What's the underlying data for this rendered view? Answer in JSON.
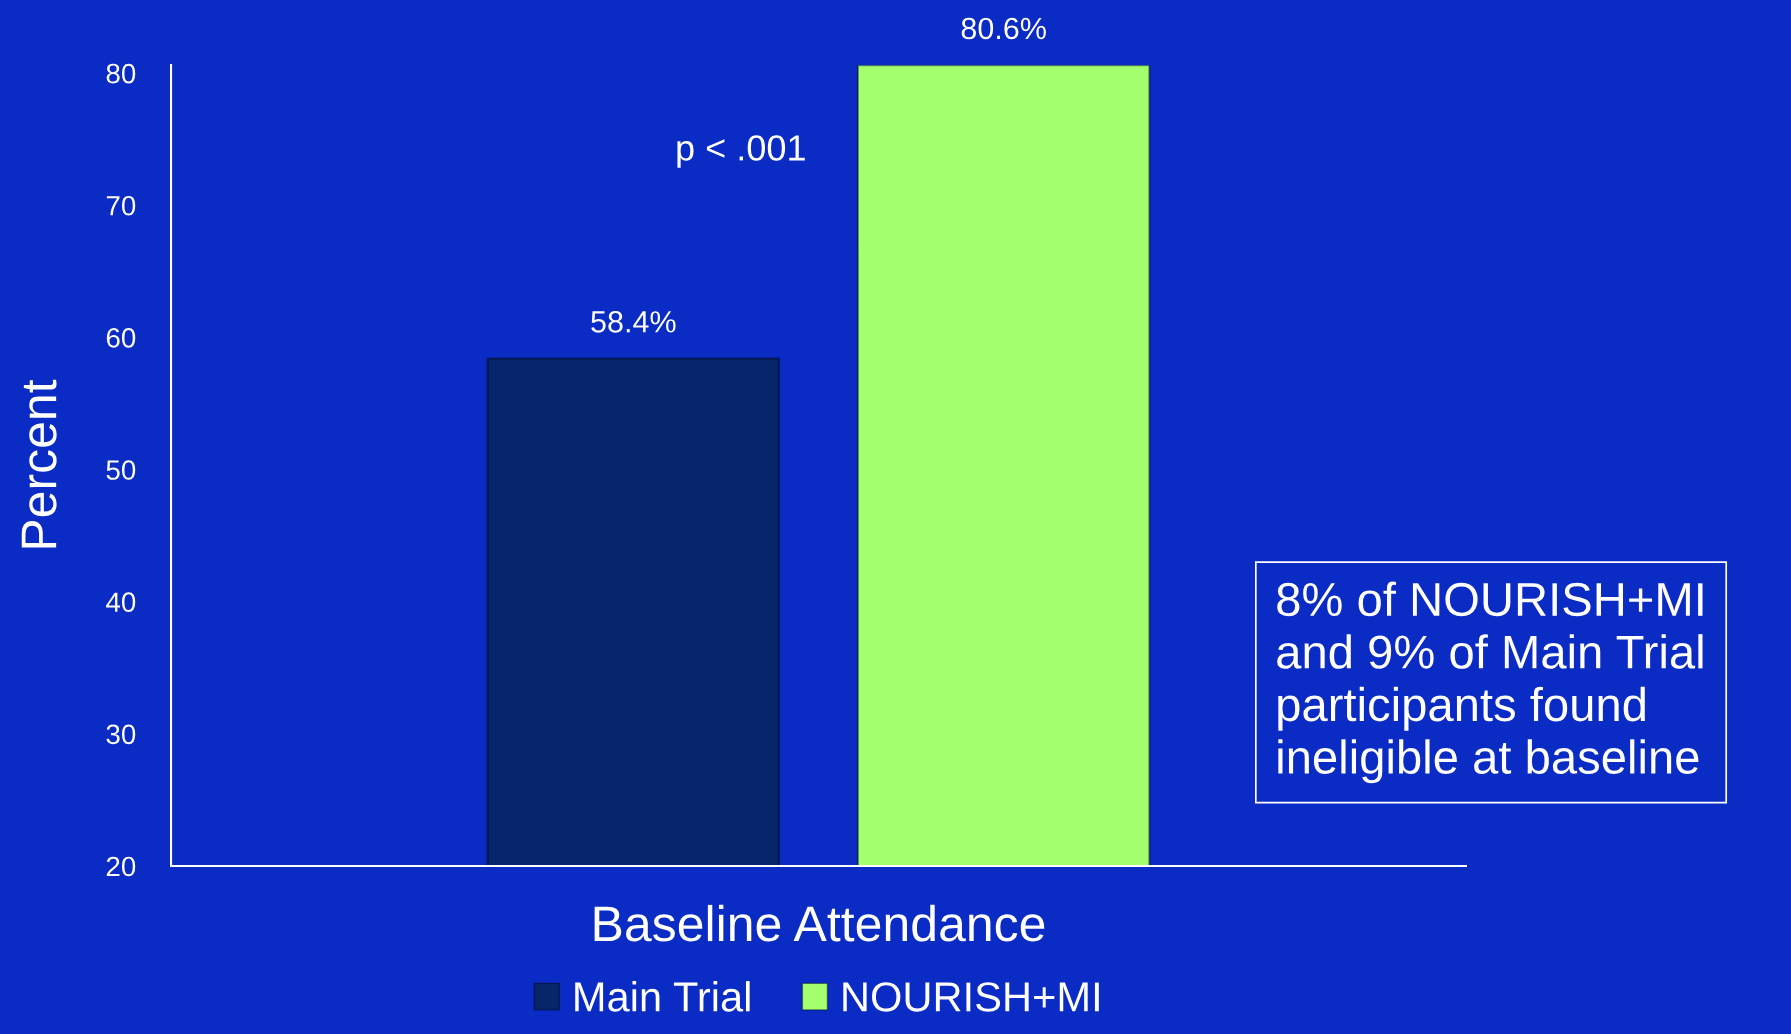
{
  "chart_data": {
    "type": "bar",
    "ylabel": "Percent",
    "categories": [
      "Baseline Attendance"
    ],
    "series": [
      {
        "name": "Main Trial",
        "color": "#06256b",
        "values": [
          58.4
        ],
        "value_labels": [
          "58.4%"
        ]
      },
      {
        "name": "NOURISH+MI",
        "color": "#a4ff6e",
        "values": [
          80.6
        ],
        "value_labels": [
          "80.6%"
        ]
      }
    ],
    "ylim": [
      20,
      80.6
    ],
    "yticks": [
      20,
      30,
      40,
      50,
      60,
      70,
      80
    ],
    "grid": false,
    "legend": "bottom",
    "annotations": [
      "p < .001",
      "8% of NOURISH+MI\nand 9% of Main Trial\nparticipants found\nineligible at baseline"
    ]
  }
}
